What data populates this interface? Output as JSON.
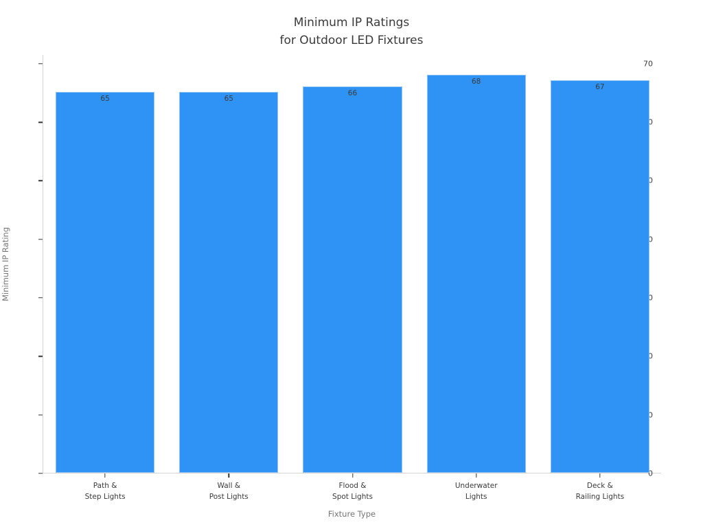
{
  "chart_data": {
    "type": "bar",
    "title": "Minimum IP Ratings\nfor Outdoor LED Fixtures",
    "categories": [
      "Path &\nStep Lights",
      "Wall &\nPost Lights",
      "Flood &\nSpot Lights",
      "Underwater\nLights",
      "Deck &\nRailing Lights"
    ],
    "values": [
      65,
      65,
      66,
      68,
      67
    ],
    "xlabel": "Fixture Type",
    "ylabel": "Minimum IP Rating",
    "ylim": [
      0,
      71.5
    ],
    "yticks": [
      0,
      10,
      20,
      30,
      40,
      50,
      60,
      70
    ],
    "grid": false,
    "legend_position": "none",
    "bar_color": "#2e93f5",
    "bar_edge_color": "rgba(255,255,255,0.45)",
    "value_label_color": "#3a3a3a",
    "tick_label_color": "#3a3a3a",
    "axis_label_color": "#757575",
    "title_color": "#3a3a3a",
    "axis_line_color": "#d4d4d4",
    "background_color": "#ffffff"
  }
}
